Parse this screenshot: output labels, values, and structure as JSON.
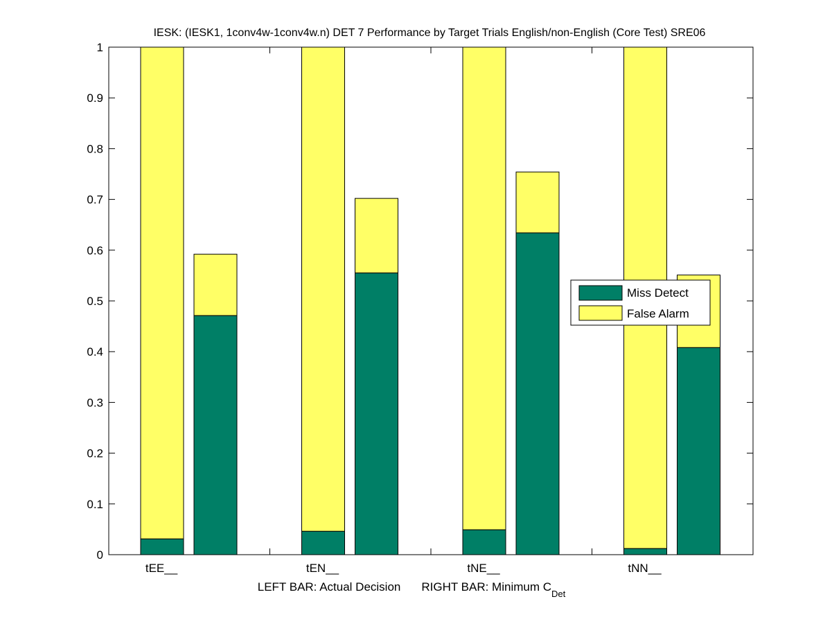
{
  "chart_data": {
    "type": "bar",
    "stacked": true,
    "title": "IESK: (IESK1, 1conv4w-1conv4w.n) DET 7 Performance by Target Trials English/non-English (Core Test) SRE06",
    "xlabel_left": "LEFT BAR: Actual Decision",
    "xlabel_right_main": "RIGHT BAR: Minimum C",
    "xlabel_right_sub": "Det",
    "ylabel": "",
    "ylim": [
      0,
      1
    ],
    "yticks": [
      "0",
      "0.1",
      "0.2",
      "0.3",
      "0.4",
      "0.5",
      "0.6",
      "0.7",
      "0.8",
      "0.9",
      "1"
    ],
    "categories": [
      "tEE__",
      "tEN__",
      "tNE__",
      "tNN__"
    ],
    "bars": [
      {
        "category": "tEE__",
        "side": "left",
        "miss_detect": 0.031,
        "false_alarm": 0.969
      },
      {
        "category": "tEE__",
        "side": "right",
        "miss_detect": 0.471,
        "false_alarm": 0.121
      },
      {
        "category": "tEN__",
        "side": "left",
        "miss_detect": 0.046,
        "false_alarm": 0.954
      },
      {
        "category": "tEN__",
        "side": "right",
        "miss_detect": 0.555,
        "false_alarm": 0.147
      },
      {
        "category": "tNE__",
        "side": "left",
        "miss_detect": 0.049,
        "false_alarm": 0.951
      },
      {
        "category": "tNE__",
        "side": "right",
        "miss_detect": 0.634,
        "false_alarm": 0.12
      },
      {
        "category": "tNN__",
        "side": "left",
        "miss_detect": 0.012,
        "false_alarm": 0.988
      },
      {
        "category": "tNN__",
        "side": "right",
        "miss_detect": 0.408,
        "false_alarm": 0.143
      }
    ],
    "legend": {
      "placement": "center-right",
      "entries": [
        {
          "label": "Miss Detect",
          "color": "#007f66"
        },
        {
          "label": "False Alarm",
          "color": "#ffff66"
        }
      ]
    },
    "grid": false
  }
}
